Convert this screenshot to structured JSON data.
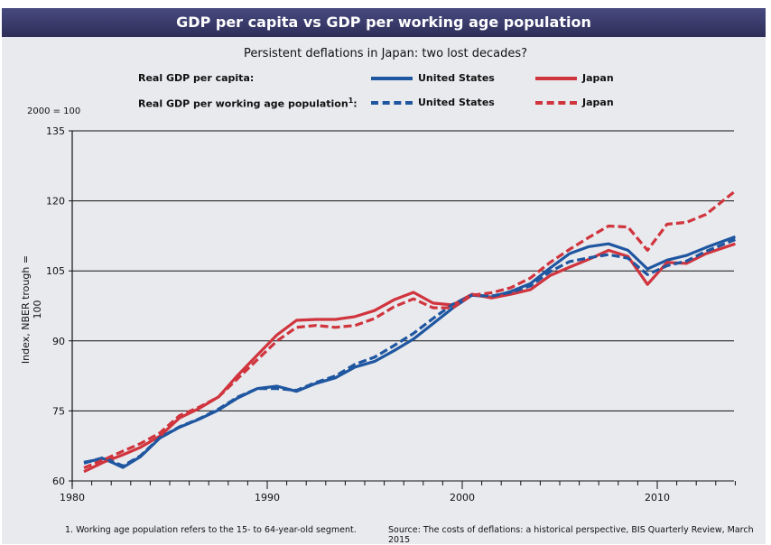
{
  "header": {
    "title": "GDP per capita vs GDP per working age population"
  },
  "chart_data": {
    "type": "line",
    "title": "Persistent deflations in Japan: two lost decades?",
    "units_note": "2000 = 100",
    "ylabel": "Index, NBER trough = 100",
    "xlabel": "",
    "xlim": [
      1980,
      2014
    ],
    "ylim": [
      60,
      135
    ],
    "yticks": [
      60,
      75,
      90,
      105,
      120,
      135
    ],
    "xticks_labeled": [
      1980,
      1990,
      2000,
      2010
    ],
    "grid": "horizontal",
    "legend": {
      "placement": "top",
      "group_labels": [
        "Real GDP per capita:",
        "Real GDP per working age population"
      ],
      "group_label_superscript": "1",
      "entries": [
        "United States",
        "Japan",
        "United States",
        "Japan"
      ]
    },
    "colors": {
      "us": "#1f56a0",
      "japan": "#d0343d"
    },
    "x": [
      1980.6,
      1981.6,
      1982.6,
      1983.5,
      1984.5,
      1985.5,
      1986.5,
      1987.5,
      1988.5,
      1989.5,
      1990.5,
      1991.5,
      1992.5,
      1993.5,
      1994.5,
      1995.5,
      1996.5,
      1997.5,
      1998.5,
      1999.5,
      2000.5,
      2001.5,
      2002.5,
      2003.5,
      2004.5,
      2005.5,
      2006.5,
      2007.5,
      2008.5,
      2009.5,
      2010.5,
      2011.5,
      2012.5,
      2014.0
    ],
    "series": [
      {
        "name": "Real GDP per capita – United States",
        "style": "solid",
        "color": "#1f56a0",
        "values": [
          64.0,
          64.8,
          62.9,
          65.2,
          69.2,
          71.5,
          73.2,
          75.2,
          77.8,
          79.8,
          80.3,
          79.2,
          80.9,
          82.1,
          84.4,
          85.6,
          87.9,
          90.4,
          93.7,
          97.0,
          99.8,
          99.4,
          100.6,
          102.3,
          105.6,
          108.7,
          110.2,
          110.8,
          109.4,
          105.4,
          107.3,
          108.3,
          110.0,
          112.3
        ]
      },
      {
        "name": "Real GDP per capita – Japan",
        "style": "solid",
        "color": "#d0343d",
        "values": [
          62.0,
          64.0,
          65.6,
          67.2,
          69.6,
          73.5,
          75.5,
          78.0,
          82.7,
          87.0,
          91.3,
          94.4,
          94.6,
          94.6,
          95.2,
          96.5,
          98.8,
          100.4,
          98.1,
          97.7,
          100.0,
          99.2,
          100.0,
          101.0,
          104.0,
          105.8,
          107.5,
          109.4,
          108.1,
          102.1,
          106.8,
          106.6,
          108.7,
          110.8
        ]
      },
      {
        "name": "Real GDP per working age population – United States",
        "style": "dashed",
        "color": "#1f56a0",
        "values": [
          63.8,
          65.0,
          63.2,
          65.4,
          69.3,
          71.6,
          73.3,
          75.4,
          78.0,
          79.8,
          79.8,
          79.4,
          81.1,
          82.5,
          85.0,
          86.5,
          89.0,
          91.6,
          94.8,
          97.8,
          99.8,
          99.6,
          100.4,
          101.8,
          104.8,
          107.0,
          107.8,
          108.5,
          107.7,
          104.2,
          106.1,
          107.1,
          109.2,
          111.7
        ]
      },
      {
        "name": "Real GDP per working age population – Japan",
        "style": "dashed",
        "color": "#d0343d",
        "values": [
          62.8,
          64.5,
          66.4,
          68.0,
          70.3,
          74.0,
          75.8,
          78.0,
          82.0,
          86.0,
          90.0,
          92.9,
          93.3,
          92.9,
          93.3,
          94.8,
          97.3,
          99.0,
          97.1,
          97.1,
          99.8,
          100.3,
          101.4,
          103.5,
          106.8,
          109.6,
          112.2,
          114.6,
          114.4,
          109.4,
          115.0,
          115.4,
          117.1,
          122.1
        ]
      }
    ]
  },
  "footer": {
    "footnote": "1. Working age population refers to the 15- to 64-year-old segment.",
    "source": "Source: The costs of deflations: a historical perspective, BIS Quarterly Review, March 2015"
  }
}
